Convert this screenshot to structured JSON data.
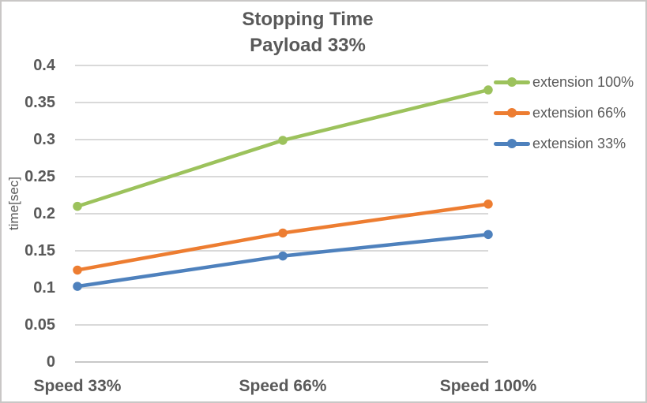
{
  "chart_data": {
    "type": "line",
    "title": "Stopping Time",
    "subtitle": "Payload 33%",
    "ylabel": "time[sec]",
    "xlabel": "",
    "categories": [
      "Speed 33%",
      "Speed 66%",
      "Speed 100%"
    ],
    "series": [
      {
        "name": "extension 100%",
        "color": "#9CC25C",
        "values": [
          0.21,
          0.299,
          0.367
        ]
      },
      {
        "name": "extension 66%",
        "color": "#ED7D31",
        "values": [
          0.124,
          0.174,
          0.213
        ]
      },
      {
        "name": "extension 33%",
        "color": "#4E81BD",
        "values": [
          0.102,
          0.143,
          0.172
        ]
      }
    ],
    "ylim": [
      0,
      0.4
    ],
    "ytick_step": 0.05,
    "ytick_labels": [
      "0",
      "0.05",
      "0.1",
      "0.15",
      "0.2",
      "0.25",
      "0.3",
      "0.35",
      "0.4"
    ],
    "grid": true,
    "legend_position": "right",
    "marker": "circle",
    "colors": {
      "text": "#595959",
      "gridline": "#D9D9D9",
      "axis_line": "#C8C8C8",
      "border": "#C9C7C6",
      "background": "#FFFFFF"
    }
  }
}
